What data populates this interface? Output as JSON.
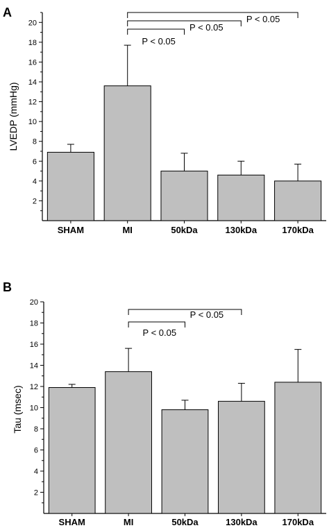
{
  "chart_data": [
    {
      "panel": "A",
      "type": "bar",
      "ylabel": "LVEDP (mmHg)",
      "xlabel": "",
      "categories": [
        "SHAM",
        "MI",
        "50kDa",
        "130kDa",
        "170kDa"
      ],
      "values": [
        6.9,
        13.6,
        5.0,
        4.6,
        4.0
      ],
      "errors": [
        0.8,
        4.1,
        1.8,
        1.4,
        1.7
      ],
      "ylim": [
        0,
        21
      ],
      "yticks": [
        2,
        4,
        6,
        8,
        10,
        12,
        14,
        16,
        18,
        20
      ],
      "significance": [
        {
          "from": 1,
          "to": 2,
          "label": "P < 0.05",
          "level": 0
        },
        {
          "from": 1,
          "to": 3,
          "label": "P < 0.05",
          "level": 1
        },
        {
          "from": 1,
          "to": 4,
          "label": "P < 0.05",
          "level": 2
        }
      ]
    },
    {
      "panel": "B",
      "type": "bar",
      "ylabel": "Tau (msec)",
      "xlabel": "",
      "categories": [
        "SHAM",
        "MI",
        "50kDa",
        "130kDa",
        "170kDa"
      ],
      "values": [
        11.9,
        13.4,
        9.8,
        10.6,
        12.4
      ],
      "errors": [
        0.3,
        2.2,
        0.9,
        1.7,
        3.1
      ],
      "ylim": [
        0,
        20
      ],
      "yticks": [
        2,
        4,
        6,
        8,
        10,
        12,
        14,
        16,
        18,
        20
      ],
      "significance": [
        {
          "from": 1,
          "to": 2,
          "label": "P < 0.05",
          "level": 0
        },
        {
          "from": 1,
          "to": 3,
          "label": "P < 0.05",
          "level": 1
        }
      ]
    }
  ]
}
